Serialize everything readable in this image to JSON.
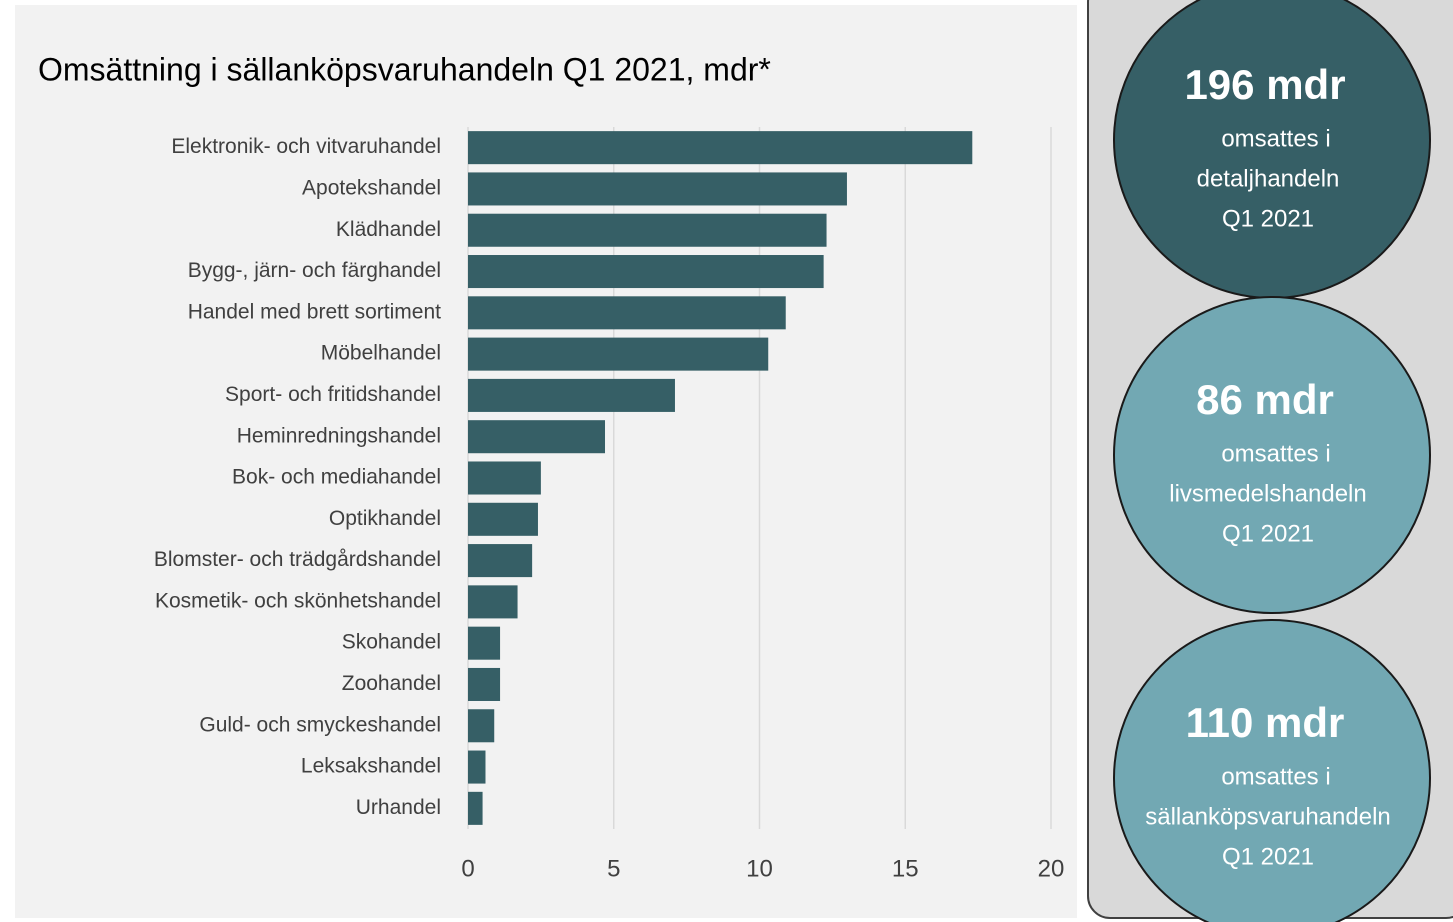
{
  "chart_data": {
    "type": "hbar",
    "title": "Omsättning i sällanköpsvaruhandeln Q1 2021, mdr*",
    "categories": [
      "Elektronik- och vitvaruhandel",
      "Apotekshandel",
      "Klädhandel",
      "Bygg-, järn- och färghandel",
      "Handel med brett sortiment",
      "Möbelhandel",
      "Sport- och fritidshandel",
      "Heminredningshandel",
      "Bok- och mediahandel",
      "Optikhandel",
      "Blomster- och trädgårdshandel",
      "Kosmetik- och skönhetshandel",
      "Skohandel",
      "Zoohandel",
      "Guld- och smyckeshandel",
      "Leksakshandel",
      "Urhandel"
    ],
    "values": [
      17.3,
      13.0,
      12.3,
      12.2,
      10.9,
      10.3,
      7.1,
      4.7,
      2.5,
      2.4,
      2.2,
      1.7,
      1.1,
      1.1,
      0.9,
      0.6,
      0.5
    ],
    "color": "#365f66",
    "xlim": [
      0,
      20
    ],
    "xticks": [
      0,
      5,
      10,
      15,
      20
    ],
    "grid": true
  },
  "panels": [
    {
      "heading": "196 mdr",
      "lines": [
        "omsattes i",
        "detaljhandeln",
        "Q1 2021"
      ],
      "color": "#365f66"
    },
    {
      "heading": "86 mdr",
      "lines": [
        "omsattes i",
        "livsmedelshandeln",
        "Q1 2021"
      ],
      "color": "#72a8b3"
    },
    {
      "heading": "110 mdr",
      "lines": [
        "omsattes i",
        "sällanköpsvaruhandeln",
        "Q1 2021"
      ],
      "color": "#72a8b3"
    }
  ]
}
